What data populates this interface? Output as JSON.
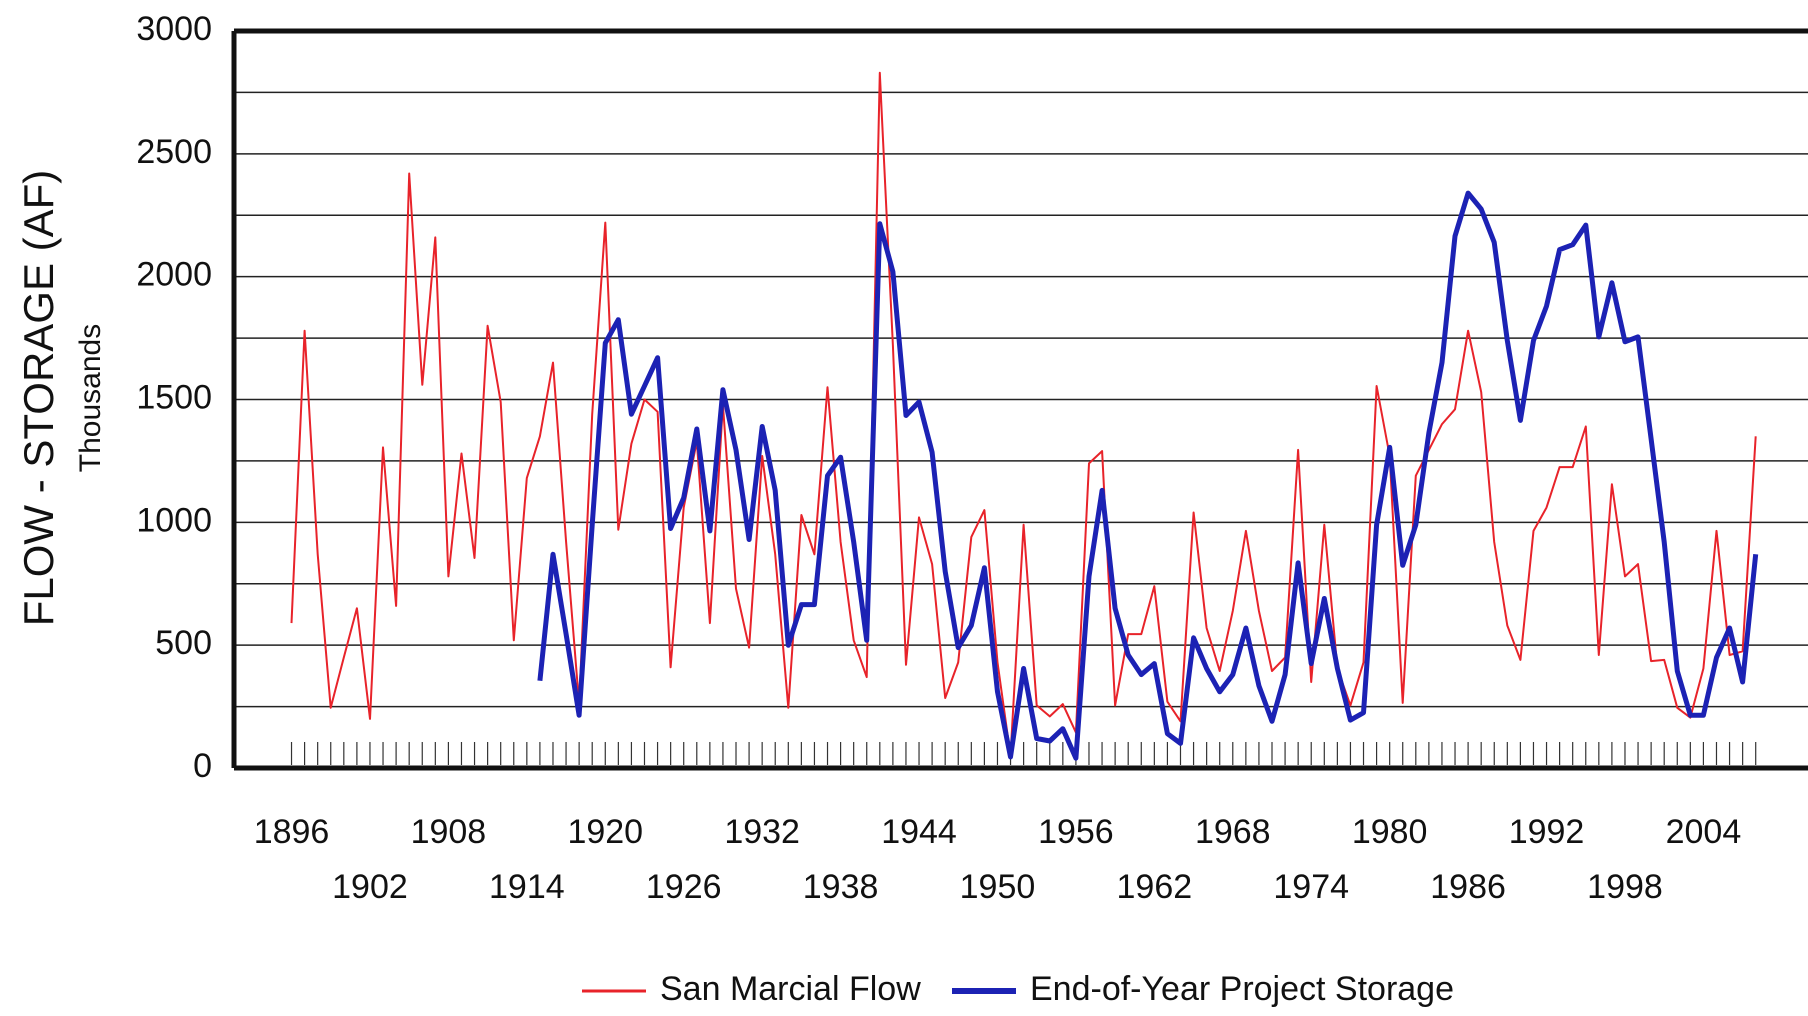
{
  "chart_data": {
    "type": "line",
    "y_label": "FLOW - STORAGE (AF)",
    "y_sublabel": "Thousands",
    "x": [
      1896,
      1897,
      1898,
      1899,
      1900,
      1901,
      1902,
      1903,
      1904,
      1905,
      1906,
      1907,
      1908,
      1909,
      1910,
      1911,
      1912,
      1913,
      1914,
      1915,
      1916,
      1917,
      1918,
      1919,
      1920,
      1921,
      1922,
      1923,
      1924,
      1925,
      1926,
      1927,
      1928,
      1929,
      1930,
      1931,
      1932,
      1933,
      1934,
      1935,
      1936,
      1937,
      1938,
      1939,
      1940,
      1941,
      1942,
      1943,
      1944,
      1945,
      1946,
      1947,
      1948,
      1949,
      1950,
      1951,
      1952,
      1953,
      1954,
      1955,
      1956,
      1957,
      1958,
      1959,
      1960,
      1961,
      1962,
      1963,
      1964,
      1965,
      1966,
      1967,
      1968,
      1969,
      1970,
      1971,
      1972,
      1973,
      1974,
      1975,
      1976,
      1977,
      1978,
      1979,
      1980,
      1981,
      1982,
      1983,
      1984,
      1985,
      1986,
      1987,
      1988,
      1989,
      1990,
      1991,
      1992,
      1993,
      1994,
      1995,
      1996,
      1997,
      1998,
      1999,
      2000,
      2001,
      2002,
      2003,
      2004,
      2005,
      2006,
      2007,
      2008
    ],
    "series": [
      {
        "name": "San Marcial Flow",
        "color": "#e8232a",
        "width": 2,
        "values": [
          590,
          1780,
          870,
          245,
          450,
          650,
          200,
          1305,
          660,
          2420,
          1560,
          2160,
          780,
          1280,
          855,
          1800,
          1490,
          520,
          1180,
          1350,
          1650,
          920,
          260,
          1440,
          2220,
          970,
          1320,
          1500,
          1450,
          410,
          1060,
          1330,
          590,
          1480,
          730,
          490,
          1270,
          870,
          245,
          1030,
          870,
          1550,
          920,
          520,
          370,
          2830,
          1720,
          420,
          1020,
          830,
          285,
          430,
          940,
          1050,
          430,
          50,
          990,
          255,
          210,
          260,
          145,
          1240,
          1290,
          255,
          545,
          545,
          740,
          270,
          190,
          1040,
          570,
          395,
          640,
          965,
          640,
          395,
          450,
          1295,
          350,
          990,
          405,
          255,
          430,
          1555,
          1270,
          265,
          1190,
          1295,
          1400,
          1460,
          1780,
          1530,
          920,
          580,
          440,
          965,
          1060,
          1225,
          1225,
          1390,
          460,
          1155,
          780,
          830,
          435,
          440,
          245,
          205,
          405,
          965,
          460,
          475,
          1350
        ]
      },
      {
        "name": "End-of-Year Project Storage",
        "color": "#1c22b4",
        "width": 5,
        "values": [
          null,
          null,
          null,
          null,
          null,
          null,
          null,
          null,
          null,
          null,
          null,
          null,
          null,
          null,
          null,
          null,
          null,
          null,
          null,
          355,
          870,
          545,
          215,
          990,
          1730,
          1825,
          1440,
          1555,
          1670,
          975,
          1100,
          1380,
          965,
          1540,
          1295,
          930,
          1390,
          1130,
          500,
          665,
          665,
          1190,
          1265,
          920,
          520,
          2215,
          2020,
          1435,
          1490,
          1285,
          800,
          490,
          580,
          815,
          310,
          45,
          405,
          120,
          110,
          160,
          40,
          780,
          1130,
          650,
          460,
          380,
          425,
          140,
          100,
          530,
          405,
          310,
          380,
          570,
          335,
          190,
          380,
          835,
          425,
          690,
          405,
          195,
          225,
          990,
          1305,
          825,
          990,
          1365,
          1650,
          2165,
          2340,
          2275,
          2140,
          1740,
          1415,
          1740,
          1880,
          2110,
          2130,
          2210,
          1755,
          1975,
          1735,
          1755,
          1340,
          920,
          395,
          215,
          215,
          450,
          570,
          350,
          870
        ]
      }
    ],
    "xlim": [
      1891.6,
      2012
    ],
    "xticks": [
      1896,
      1902,
      1908,
      1914,
      1920,
      1926,
      1932,
      1938,
      1944,
      1950,
      1956,
      1962,
      1968,
      1974,
      1980,
      1986,
      1992,
      1998,
      2004
    ],
    "ylim": [
      0,
      3000
    ],
    "yticks": [
      0,
      500,
      1000,
      1500,
      2000,
      2500,
      3000
    ],
    "y_minor_ticks": [
      250,
      750,
      1250,
      1750,
      2250,
      2750
    ],
    "grid": true,
    "legend": "bottom"
  }
}
